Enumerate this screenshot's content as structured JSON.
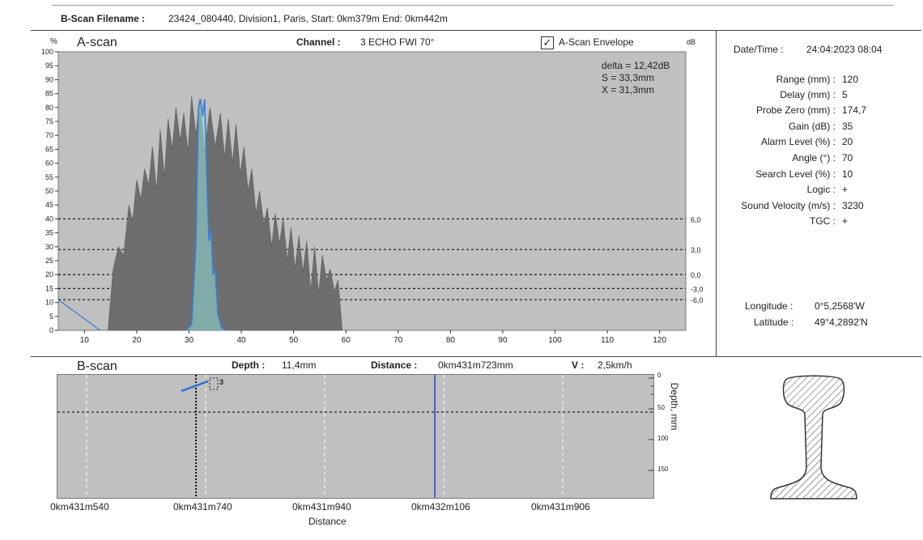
{
  "header": {
    "filename_label": "B-Scan Filename :",
    "filename_value": "23424_080440, Division1, Paris, Start: 0km379m  End: 0km442m"
  },
  "ascan": {
    "title": "A-scan",
    "y_unit": "%",
    "db_unit": "dB",
    "channel_label": "Channel :",
    "channel_value": "3 ECHO FWI 70°",
    "envelope_label": "A-Scan Envelope",
    "envelope_checked": true,
    "readouts": {
      "delta": "delta = 12,42dB",
      "s": "S = 33,3mm",
      "x": "X = 31,3mm"
    },
    "db_levels": [
      "6,0",
      "3,0",
      "0,0",
      "-3,0",
      "-6,0"
    ]
  },
  "params": {
    "datetime_label": "Date/Time :",
    "datetime_value": "24:04:2023 08:04",
    "rows": [
      {
        "label": "Range (mm) :",
        "value": "120"
      },
      {
        "label": "Delay (mm) :",
        "value": "5"
      },
      {
        "label": "Probe Zero (mm) :",
        "value": "174,7"
      },
      {
        "label": "Gain (dB) :",
        "value": "35"
      },
      {
        "label": "Alarm Level (%) :",
        "value": "20"
      },
      {
        "label": "Angle (°) :",
        "value": "70"
      },
      {
        "label": "Search Level (%) :",
        "value": "10"
      },
      {
        "label": "Logic :",
        "value": "+"
      },
      {
        "label": "Sound Velocity (m/s) :",
        "value": "3230"
      },
      {
        "label": "TGC :",
        "value": "+"
      }
    ],
    "longitude_label": "Longitude :",
    "longitude_value": "0°5,2568'W",
    "latitude_label": "Latitude :",
    "latitude_value": "49°4,2892'N"
  },
  "bscan": {
    "title": "B-scan",
    "depth_label": "Depth :",
    "depth_value": "11,4mm",
    "distance_label": "Distance :",
    "distance_value": "0km431m723mm",
    "speed_label": "V :",
    "speed_value": "2,5km/h",
    "marker_label": "3",
    "depth_axis_label": "Depth, mm",
    "distance_axis_label": "Distance",
    "x_ticks": [
      "0km431m540",
      "0km431m740",
      "0km431m940",
      "0km432m106",
      "0km431m906"
    ],
    "depth_ticks": [
      "0",
      "50",
      "100",
      "150"
    ]
  },
  "chart_data": {
    "type": "area",
    "title": "A-scan",
    "xlabel": "",
    "ylabel": "%",
    "xlim": [
      5,
      125
    ],
    "ylim": [
      0,
      100
    ],
    "x_ticks": [
      10,
      20,
      30,
      40,
      50,
      60,
      70,
      80,
      90,
      100,
      110,
      120
    ],
    "y_ticks": [
      0,
      5,
      10,
      15,
      20,
      25,
      30,
      35,
      40,
      45,
      50,
      55,
      60,
      65,
      70,
      75,
      80,
      85,
      90,
      95,
      100
    ],
    "grid": false,
    "threshold_levels": [
      {
        "y": 40,
        "label": "6,0"
      },
      {
        "y": 29,
        "label": "3,0"
      },
      {
        "y": 20,
        "label": "0,0"
      },
      {
        "y": 15,
        "label": "-3,0"
      },
      {
        "y": 11,
        "label": "-6,0"
      }
    ],
    "series": [
      {
        "kind": "envelope",
        "color": "#6e6e6e",
        "x": [
          14.5,
          15.5,
          16.5,
          17.5,
          18.5,
          19.2,
          20,
          20.8,
          21.5,
          22.3,
          23,
          23.8,
          24.5,
          25.3,
          26,
          26.8,
          27.5,
          28.3,
          29,
          29.8,
          30.5,
          31.3,
          32,
          33,
          34,
          35,
          36,
          36.8,
          37.5,
          38.3,
          39,
          39.8,
          40.5,
          41.3,
          42,
          42.8,
          43.5,
          44.3,
          45,
          45.8,
          46.5,
          47.3,
          48,
          48.8,
          49.5,
          50.3,
          51,
          51.8,
          52.5,
          53.3,
          54,
          54.8,
          55.5,
          56.3,
          57,
          57.8,
          58.5,
          59.3
        ],
        "y": [
          0,
          22,
          30,
          27,
          45,
          39,
          54,
          47,
          58,
          52,
          66,
          50,
          72,
          55,
          76,
          65,
          80,
          68,
          78,
          64,
          84,
          70,
          83,
          64,
          80,
          66,
          78,
          62,
          76,
          60,
          74,
          56,
          66,
          50,
          58,
          42,
          50,
          38,
          44,
          30,
          42,
          31,
          40,
          25,
          37,
          22,
          34,
          21,
          32,
          14,
          30,
          13,
          27,
          18,
          22,
          14,
          18,
          0
        ]
      },
      {
        "kind": "echo",
        "color": "#3a7fd5",
        "x": [
          29.5,
          30.5,
          31.3,
          31.8,
          32.2,
          32.6,
          33.0,
          33.4,
          33.8,
          34.2,
          34.6,
          35.0,
          35.5,
          36.2,
          37
        ],
        "y": [
          0,
          2,
          30,
          80,
          83,
          77,
          83,
          55,
          32,
          36,
          20,
          22,
          6,
          1,
          0
        ]
      },
      {
        "kind": "reference",
        "color": "#3a7fd5",
        "x": [
          5,
          13
        ],
        "y": [
          11,
          0
        ]
      }
    ]
  }
}
